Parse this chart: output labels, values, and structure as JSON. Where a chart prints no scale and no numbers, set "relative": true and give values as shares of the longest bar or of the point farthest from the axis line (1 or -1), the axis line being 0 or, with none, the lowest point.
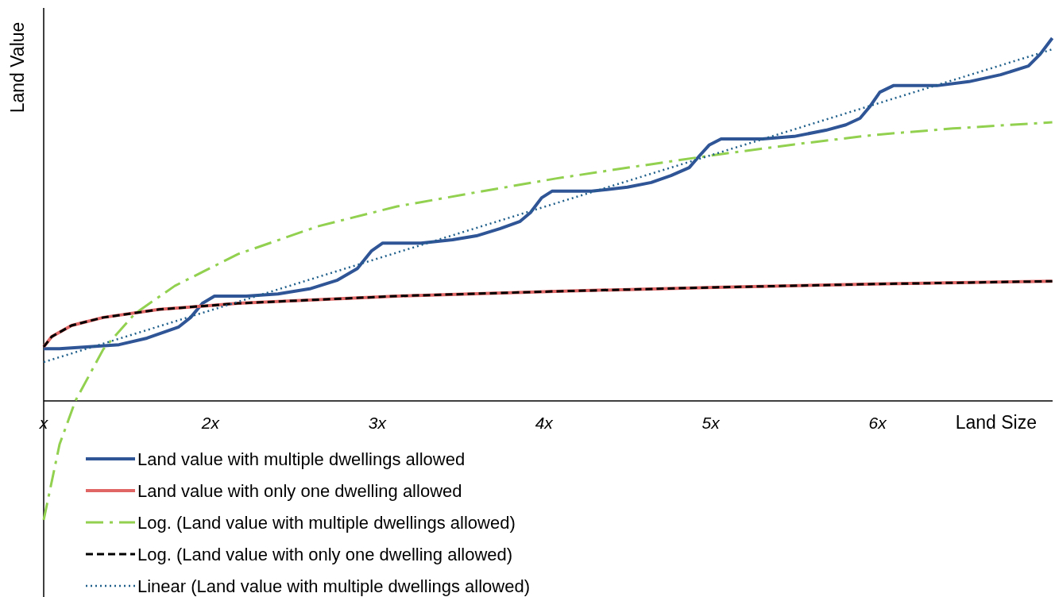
{
  "chart_data": {
    "type": "line",
    "relative": true,
    "xlabel": "Land Size",
    "ylabel": "Land Value",
    "xlim": [
      1,
      7.05
    ],
    "xticks": [
      {
        "value": 1,
        "label": "x"
      },
      {
        "value": 2,
        "label": "2x"
      },
      {
        "value": 3,
        "label": "3x"
      },
      {
        "value": 4,
        "label": "4x"
      },
      {
        "value": 5,
        "label": "5x"
      },
      {
        "value": 6,
        "label": "6x"
      }
    ],
    "legend": "bottom",
    "grid": false,
    "marker": "none",
    "series": [
      {
        "name": "Land value with multiple dwellings allowed",
        "color": "#2f5597",
        "line_style": "solid",
        "x": [
          1,
          1.095,
          1.452,
          1.619,
          1.81,
          1.881,
          1.952,
          2.024,
          2.214,
          2.405,
          2.595,
          2.762,
          2.881,
          2.967,
          3.033,
          3.262,
          3.452,
          3.595,
          3.738,
          3.857,
          3.919,
          3.986,
          4.048,
          4.286,
          4.5,
          4.643,
          4.762,
          4.871,
          4.929,
          4.99,
          5.062,
          5.31,
          5.5,
          5.69,
          5.81,
          5.895,
          5.952,
          6.014,
          6.095,
          6.357,
          6.548,
          6.738,
          6.905,
          6.976,
          7.048
        ],
        "values": [
          0.144,
          0.144,
          0.155,
          0.173,
          0.204,
          0.23,
          0.269,
          0.289,
          0.289,
          0.295,
          0.309,
          0.333,
          0.365,
          0.414,
          0.435,
          0.435,
          0.444,
          0.455,
          0.475,
          0.495,
          0.519,
          0.56,
          0.578,
          0.578,
          0.589,
          0.602,
          0.621,
          0.643,
          0.674,
          0.705,
          0.722,
          0.722,
          0.729,
          0.746,
          0.761,
          0.779,
          0.81,
          0.851,
          0.869,
          0.869,
          0.88,
          0.899,
          0.923,
          0.956,
          1
        ]
      },
      {
        "name": "Land value with only one dwelling allowed",
        "color": "#e06666",
        "line_style": "solid",
        "x": [
          1,
          1.048,
          1.167,
          1.357,
          1.69,
          2.167,
          3.119,
          4.071,
          5.024,
          5.976,
          7.048
        ],
        "values": [
          0.149,
          0.177,
          0.208,
          0.23,
          0.252,
          0.269,
          0.289,
          0.302,
          0.313,
          0.322,
          0.33
        ]
      },
      {
        "name": "Log. (Land value with multiple dwellings allowed)",
        "color": "#92d050",
        "line_style": "dashdot",
        "x": [
          1,
          1.095,
          1.19,
          1.357,
          1.548,
          1.786,
          2.167,
          2.643,
          3.119,
          3.595,
          4.071,
          4.548,
          5.024,
          5.5,
          5.976,
          6.452,
          7.048
        ],
        "values": [
          -0.328,
          -0.12,
          0,
          0.142,
          0.241,
          0.317,
          0.405,
          0.481,
          0.536,
          0.575,
          0.613,
          0.646,
          0.678,
          0.707,
          0.733,
          0.751,
          0.768
        ]
      },
      {
        "name": "Log. (Land value with only one dwelling allowed)",
        "color": "#000000",
        "line_style": "dashed",
        "x": [
          1,
          1.048,
          1.167,
          1.357,
          1.69,
          2.167,
          3.119,
          4.071,
          5.024,
          5.976,
          7.048
        ],
        "values": [
          0.149,
          0.177,
          0.208,
          0.23,
          0.252,
          0.269,
          0.289,
          0.302,
          0.313,
          0.322,
          0.33
        ]
      },
      {
        "name": "Linear (Land value with multiple dwellings allowed)",
        "color": "#1f5f8b",
        "line_style": "dotted",
        "x": [
          1,
          7.048
        ],
        "values": [
          0.107,
          0.969
        ]
      }
    ]
  }
}
